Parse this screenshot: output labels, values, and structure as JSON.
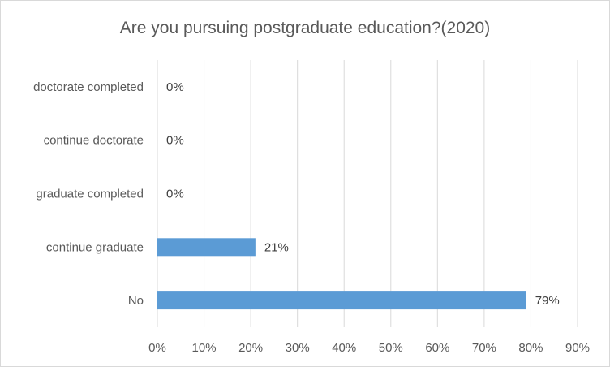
{
  "chart_data": {
    "type": "bar",
    "orientation": "horizontal",
    "title": "Are you pursuing postgraduate education?(2020)",
    "categories": [
      "doctorate completed",
      "continue doctorate",
      "graduate completed",
      "continue graduate",
      "No"
    ],
    "values": [
      0,
      0,
      0,
      21,
      79
    ],
    "data_labels": [
      "0%",
      "0%",
      "0%",
      "21%",
      "79%"
    ],
    "x_ticks": [
      "0%",
      "10%",
      "20%",
      "30%",
      "40%",
      "50%",
      "60%",
      "70%",
      "80%",
      "90%"
    ],
    "xlim": [
      0,
      90
    ],
    "grid": true,
    "legend": "none",
    "bar_color": "#5b9bd5",
    "grid_color": "#d9d9d9"
  }
}
